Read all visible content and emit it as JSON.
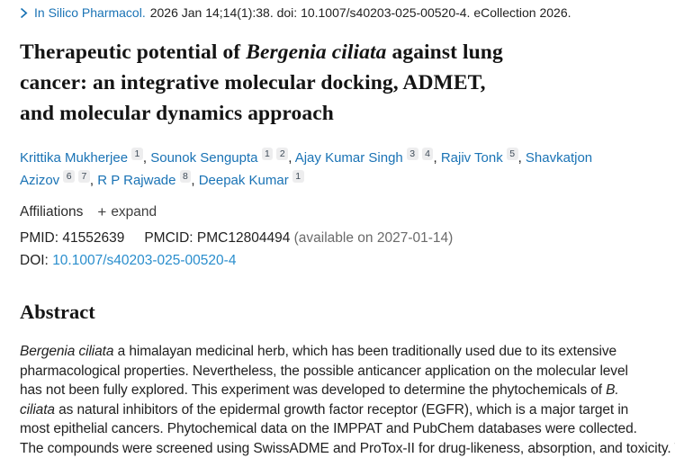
{
  "citation": {
    "journal": "In Silico Pharmacol.",
    "rest": "2026 Jan 14;14(1):38. doi: 10.1007/s40203-025-00520-4. eCollection 2026."
  },
  "title": {
    "lines": [
      [
        {
          "text": "Therapeutic potential of "
        },
        {
          "text": "Bergenia ciliata",
          "italic": true
        },
        {
          "text": " against lung"
        }
      ],
      [
        {
          "text": "cancer: an integrative molecular docking, ADMET,"
        }
      ],
      [
        {
          "text": "and molecular dynamics approach"
        }
      ]
    ]
  },
  "authors": {
    "list": [
      {
        "name": "Krittika Mukherjee",
        "sups": [
          "1"
        ]
      },
      {
        "name": "Sounok Sengupta",
        "sups": [
          "1",
          "2"
        ]
      },
      {
        "name": "Ajay Kumar Singh",
        "sups": [
          "3",
          "4"
        ]
      },
      {
        "name": "Rajiv Tonk",
        "sups": [
          "5"
        ]
      },
      {
        "name": "Shavkatjon Azizov",
        "sups": [
          "6",
          "7"
        ]
      },
      {
        "name": "R P Rajwade",
        "sups": [
          "8"
        ]
      },
      {
        "name": "Deepak Kumar",
        "sups": [
          "1"
        ]
      }
    ]
  },
  "affiliations": {
    "label": "Affiliations",
    "plus_icon": "+",
    "expand_label": "expand"
  },
  "ids": {
    "pmid_label": "PMID:",
    "pmid": "41552639",
    "pmcid_label": "PMCID:",
    "pmcid": "PMC12804494",
    "pmcid_note": "(available on 2027-01-14)",
    "doi_label": "DOI:",
    "doi": "10.1007/s40203-025-00520-4"
  },
  "abstract": {
    "heading": "Abstract",
    "lines": [
      [
        {
          "text": "Bergenia ciliata",
          "italic": true
        },
        {
          "text": " a himalayan medicinal herb, which has been traditionally used due to its extensive"
        }
      ],
      [
        {
          "text": "pharmacological properties. Nevertheless, the possible anticancer application on the molecular level"
        }
      ],
      [
        {
          "text": "has not been fully explored. This experiment was developed to determine the phytochemicals of "
        },
        {
          "text": "B.",
          "italic": true
        }
      ],
      [
        {
          "text": "ciliata",
          "italic": true
        },
        {
          "text": " as natural inhibitors of the epidermal growth factor receptor (EGFR), which is a major target in"
        }
      ],
      [
        {
          "text": "most epithelial cancers. Phytochemical data on the IMPPAT and PubChem databases were collected."
        }
      ],
      [
        {
          "text": "The compounds were screened using SwissADME and ProTox-II for drug-likeness, absorption, and toxicity. The"
        }
      ]
    ]
  },
  "colors": {
    "link_blue": "#1a73b5",
    "doi_blue": "#2a8ecd",
    "text": "#212121",
    "title_black": "#141414",
    "muted": "#6a6a6a",
    "badge_bg": "#ededee",
    "badge_text": "#3f4c59",
    "expand_gray": "#3f3f3f"
  }
}
